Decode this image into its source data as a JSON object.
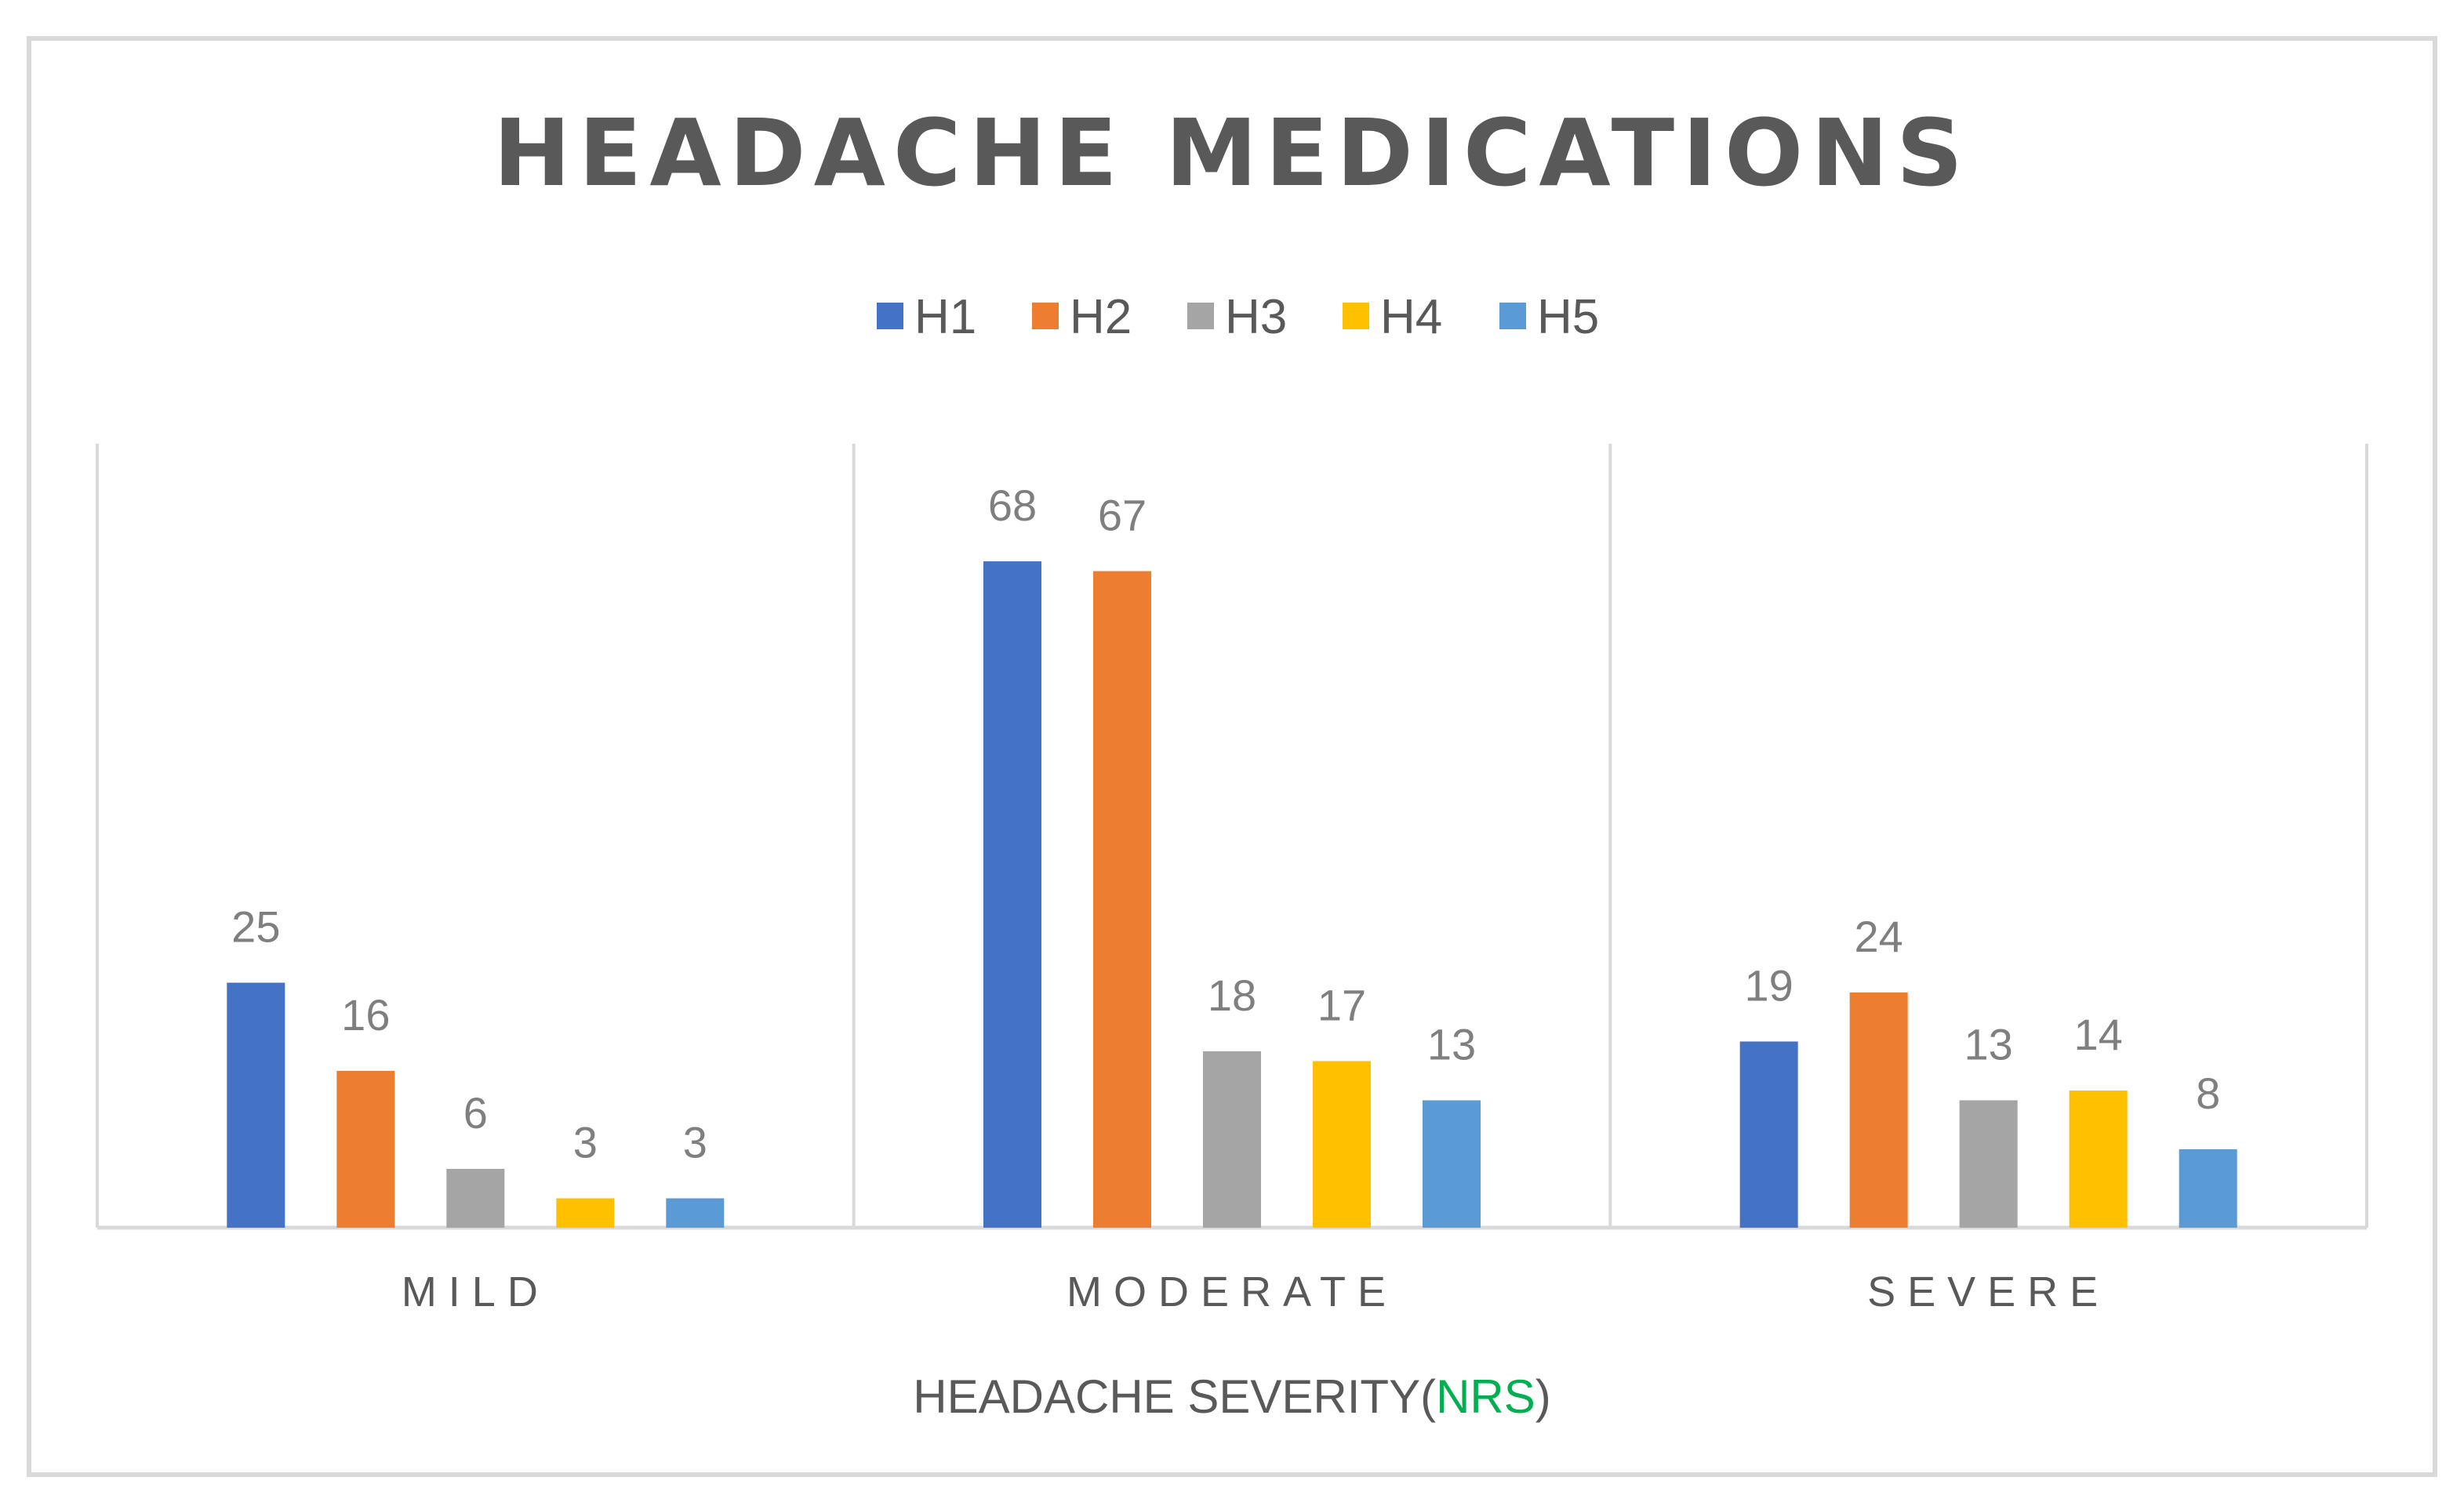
{
  "chart_data": {
    "type": "bar",
    "title": "HEADACHE MEDICATIONS",
    "categories": [
      "MILD",
      "MODERATE",
      "SEVERE"
    ],
    "series": [
      {
        "name": "H1",
        "color": "#4472c4",
        "values": [
          25,
          68,
          19
        ]
      },
      {
        "name": "H2",
        "color": "#ed7d31",
        "values": [
          16,
          67,
          24
        ]
      },
      {
        "name": "H3",
        "color": "#a5a5a5",
        "values": [
          6,
          18,
          13
        ]
      },
      {
        "name": "H4",
        "color": "#ffc000",
        "values": [
          3,
          17,
          14
        ]
      },
      {
        "name": "H5",
        "color": "#5b9bd5",
        "values": [
          3,
          13,
          8
        ]
      }
    ],
    "xlabel": {
      "prefix": "HEADACHE SEVERITY(",
      "highlight": "NRS",
      "suffix": ")",
      "highlight_color": "#00b050"
    },
    "ylabel": "",
    "ylim": [
      0,
      80
    ],
    "legend_position": "top-center",
    "grid": "vertical category separators",
    "data_labels": true
  }
}
